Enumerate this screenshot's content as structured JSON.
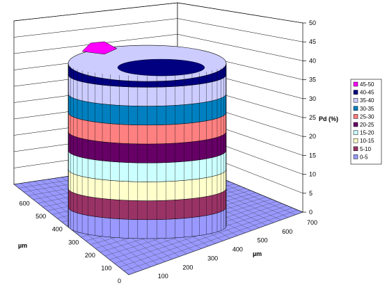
{
  "chart_data": {
    "type": "surface",
    "title": "",
    "z_axis": {
      "label": "Pd (%)",
      "range": [
        0,
        50
      ],
      "ticks": [
        0,
        5,
        10,
        15,
        20,
        25,
        30,
        35,
        40,
        45,
        50
      ]
    },
    "x_axis": {
      "label": "µm",
      "range": [
        0,
        700
      ],
      "ticks": [
        100,
        200,
        300,
        400,
        500,
        600,
        700
      ]
    },
    "y_axis": {
      "label": "µm",
      "range": [
        0,
        700
      ],
      "ticks": [
        0,
        100,
        200,
        300,
        400,
        500,
        600
      ]
    },
    "legend": {
      "placement": "right",
      "bands": [
        {
          "label": "45-50",
          "color": "#ff00ff"
        },
        {
          "label": "40-45",
          "color": "#000080"
        },
        {
          "label": "35-40",
          "color": "#ccccff"
        },
        {
          "label": "30-35",
          "color": "#0080c0"
        },
        {
          "label": "25-30",
          "color": "#ff8080"
        },
        {
          "label": "20-25",
          "color": "#660066"
        },
        {
          "label": "15-20",
          "color": "#ccffff"
        },
        {
          "label": "10-15",
          "color": "#ffffcc"
        },
        {
          "label": "5-10",
          "color": "#993366"
        },
        {
          "label": "0-5",
          "color": "#9999ff"
        }
      ]
    },
    "surface_description_values": {
      "plateau_level_pct": 43,
      "peak_level_pct": 48,
      "base_level_pct": 1
    }
  }
}
